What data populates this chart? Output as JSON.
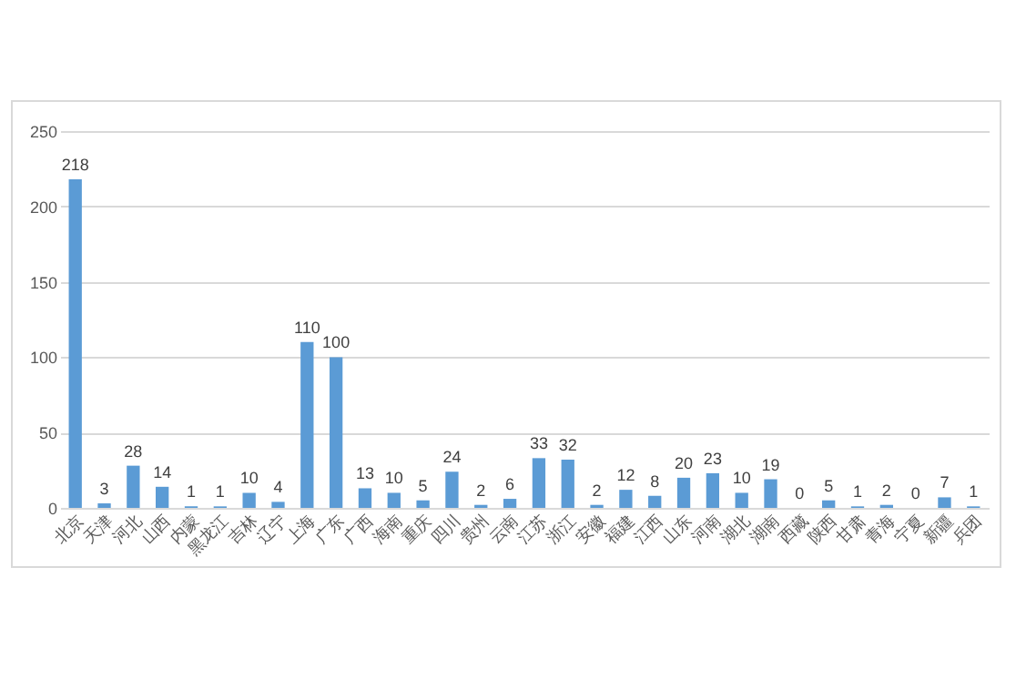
{
  "chart_data": {
    "type": "bar",
    "categories": [
      "北京",
      "天津",
      "河北",
      "山西",
      "内蒙",
      "黑龙江",
      "吉林",
      "辽宁",
      "上海",
      "广东",
      "广西",
      "海南",
      "重庆",
      "四川",
      "贵州",
      "云南",
      "江苏",
      "浙江",
      "安徽",
      "福建",
      "江西",
      "山东",
      "河南",
      "湖北",
      "湖南",
      "西藏",
      "陕西",
      "甘肃",
      "青海",
      "宁夏",
      "新疆",
      "兵团"
    ],
    "values": [
      218,
      3,
      28,
      14,
      1,
      1,
      10,
      4,
      110,
      100,
      13,
      10,
      5,
      24,
      2,
      6,
      33,
      32,
      2,
      12,
      8,
      20,
      23,
      10,
      19,
      0,
      5,
      1,
      2,
      0,
      7,
      1
    ],
    "color": "#5b9bd5",
    "ylim": [
      0,
      250
    ],
    "yticks": [
      0,
      50,
      100,
      150,
      200,
      250
    ],
    "grid": "y",
    "data_labels": true
  }
}
